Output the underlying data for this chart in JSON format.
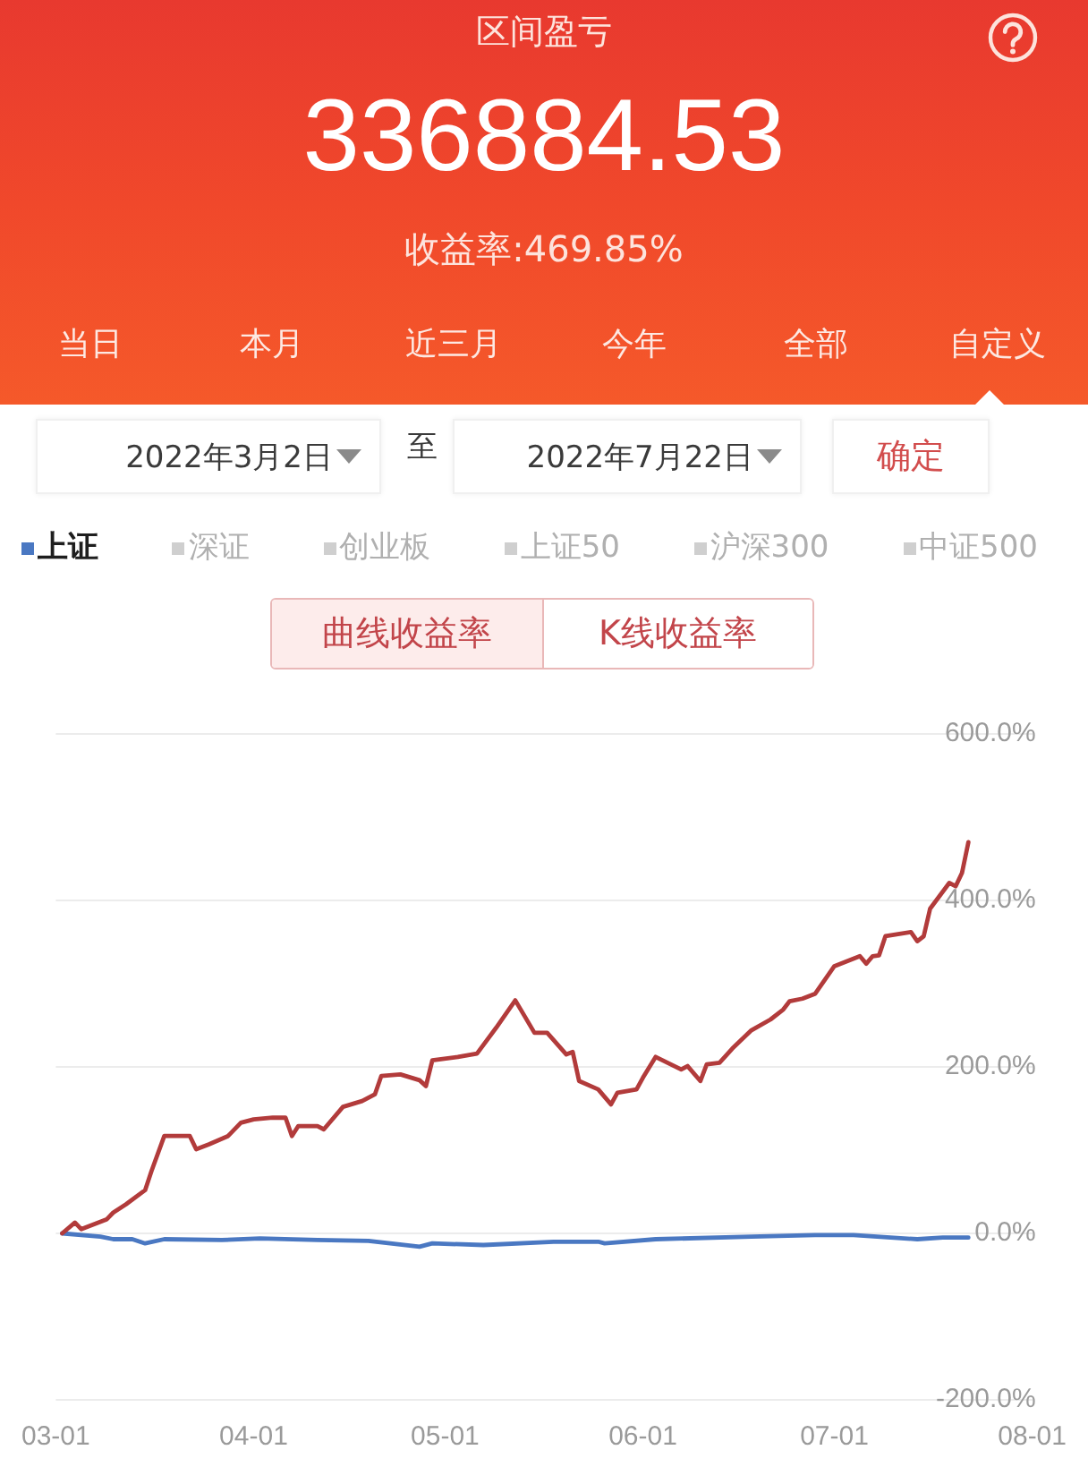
{
  "chart_data": {
    "type": "line",
    "title": "区间盈亏",
    "subtitle": "336884.53",
    "annotations": [
      "收益率:469.85%",
      "当日",
      "本月",
      "近三月",
      "今年",
      "全部",
      "自定义",
      "2022年3月2日",
      "至",
      "2022年7月22日",
      "确定",
      "曲线收益率",
      "K线收益率"
    ],
    "xlim": [
      "2022-03-01",
      "2022-08-01"
    ],
    "xticks": [
      {
        "value": "2022-03-01",
        "label": "03-01"
      },
      {
        "value": "2022-04-01",
        "label": "04-01"
      },
      {
        "value": "2022-05-01",
        "label": "05-01"
      },
      {
        "value": "2022-06-01",
        "label": "06-01"
      },
      {
        "value": "2022-07-01",
        "label": "07-01"
      },
      {
        "value": "2022-08-01",
        "label": "08-01"
      }
    ],
    "ylim": [
      -200,
      600
    ],
    "yticks": [
      {
        "value": -200,
        "label": "-200.0%"
      },
      {
        "value": 0,
        "label": "0.0%"
      },
      {
        "value": 200,
        "label": "200.0%"
      },
      {
        "value": 400,
        "label": "400.0%"
      },
      {
        "value": 600,
        "label": "600.0%"
      }
    ],
    "grid": "y",
    "legend": "top",
    "series": [
      {
        "color": "#b23b3b",
        "x": [
          "2022-03-02",
          "2022-03-04",
          "2022-03-05",
          "2022-03-09",
          "2022-03-10",
          "2022-03-12",
          "2022-03-15",
          "2022-03-16",
          "2022-03-18",
          "2022-03-22",
          "2022-03-23",
          "2022-03-25",
          "2022-03-28",
          "2022-03-30",
          "2022-04-01",
          "2022-04-04",
          "2022-04-06",
          "2022-04-07",
          "2022-04-08",
          "2022-04-11",
          "2022-04-12",
          "2022-04-15",
          "2022-04-18",
          "2022-04-20",
          "2022-04-21",
          "2022-04-24",
          "2022-04-27",
          "2022-04-28",
          "2022-04-29",
          "2022-05-03",
          "2022-05-06",
          "2022-05-09",
          "2022-05-12",
          "2022-05-15",
          "2022-05-17",
          "2022-05-20",
          "2022-05-21",
          "2022-05-22",
          "2022-05-25",
          "2022-05-27",
          "2022-05-28",
          "2022-05-31",
          "2022-06-01",
          "2022-06-03",
          "2022-06-07",
          "2022-06-08",
          "2022-06-10",
          "2022-06-11",
          "2022-06-13",
          "2022-06-15",
          "2022-06-18",
          "2022-06-21",
          "2022-06-23",
          "2022-06-24",
          "2022-06-26",
          "2022-06-28",
          "2022-07-01",
          "2022-07-05",
          "2022-07-06",
          "2022-07-07",
          "2022-07-08",
          "2022-07-09",
          "2022-07-13",
          "2022-07-14",
          "2022-07-15",
          "2022-07-16",
          "2022-07-19",
          "2022-07-20",
          "2022-07-21",
          "2022-07-22"
        ],
        "values": [
          0,
          13,
          5,
          17,
          25,
          35,
          52,
          75,
          117,
          117,
          101,
          107,
          117,
          133,
          137,
          139,
          139,
          117,
          129,
          129,
          125,
          152,
          159,
          167,
          189,
          191,
          184,
          177,
          208,
          212,
          216,
          247,
          280,
          241,
          241,
          215,
          218,
          183,
          173,
          155,
          169,
          173,
          187,
          212,
          197,
          201,
          183,
          203,
          205,
          222,
          244,
          257,
          269,
          279,
          282,
          288,
          321,
          333,
          324,
          333,
          334,
          357,
          362,
          351,
          357,
          390,
          421,
          417,
          433,
          470
        ]
      },
      {
        "name": "上证",
        "color": "#4a78c2",
        "x": [
          "2022-03-02",
          "2022-03-08",
          "2022-03-10",
          "2022-03-13",
          "2022-03-15",
          "2022-03-18",
          "2022-03-27",
          "2022-04-02",
          "2022-04-11",
          "2022-04-19",
          "2022-04-27",
          "2022-04-29",
          "2022-05-07",
          "2022-05-18",
          "2022-05-25",
          "2022-05-26",
          "2022-06-03",
          "2022-06-18",
          "2022-06-28",
          "2022-07-04",
          "2022-07-14",
          "2022-07-18",
          "2022-07-22"
        ],
        "values": [
          0,
          -4,
          -7,
          -7,
          -12,
          -7,
          -8,
          -6,
          -8,
          -9,
          -16,
          -12,
          -14,
          -10,
          -10,
          -12,
          -7,
          -4,
          -2,
          -2,
          -7,
          -5,
          -5
        ]
      },
      {
        "name": "深证",
        "color": "#cfcfcf"
      },
      {
        "name": "创业板",
        "color": "#cfcfcf"
      },
      {
        "name": "上证50",
        "color": "#cfcfcf"
      },
      {
        "name": "沪深300",
        "color": "#cfcfcf"
      },
      {
        "name": "中证500",
        "color": "#cfcfcf"
      }
    ]
  }
}
